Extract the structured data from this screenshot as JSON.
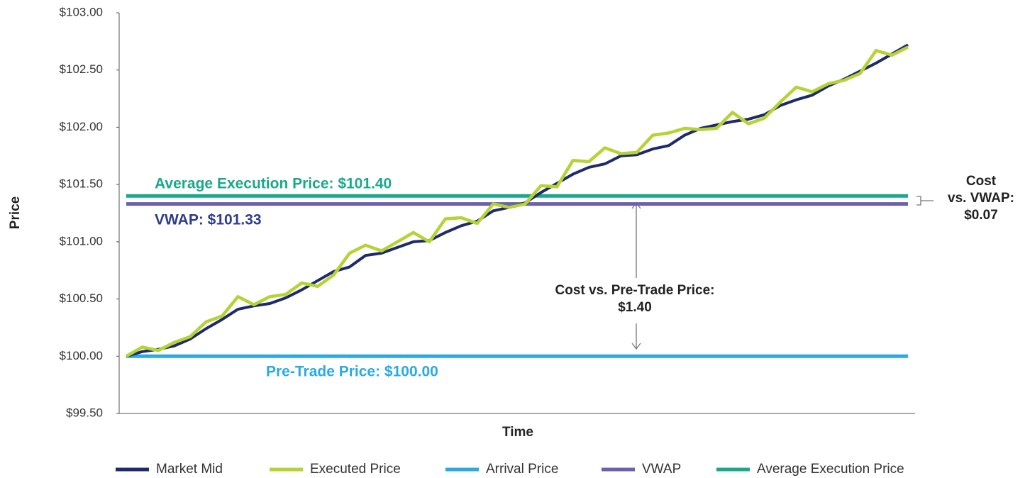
{
  "chart_data": {
    "type": "line",
    "xlabel": "Time",
    "ylabel": "Price",
    "categories": [
      null,
      null,
      null,
      null,
      null,
      null,
      null,
      null,
      null,
      null,
      null,
      null,
      null,
      null,
      null,
      null,
      null,
      null,
      null,
      null,
      null,
      null,
      null,
      null,
      null,
      null,
      null,
      null,
      null,
      null,
      null,
      null,
      null,
      null,
      null,
      null,
      null,
      null,
      null,
      null,
      null,
      null,
      null,
      null,
      null,
      null,
      null,
      null,
      null,
      null
    ],
    "ylim": [
      99.5,
      103.0
    ],
    "yticks": [
      {
        "value": 99.5,
        "label": "$99.50"
      },
      {
        "value": 100.0,
        "label": "$100.00"
      },
      {
        "value": 100.5,
        "label": "$100.50"
      },
      {
        "value": 101.0,
        "label": "$101.00"
      },
      {
        "value": 101.5,
        "label": "$101.50"
      },
      {
        "value": 102.0,
        "label": "$102.00"
      },
      {
        "value": 102.5,
        "label": "$102.50"
      },
      {
        "value": 103.0,
        "label": "$103.00"
      }
    ],
    "series": [
      {
        "name": "Market Mid",
        "color": "#1f2a6b",
        "values": [
          100.0,
          100.04,
          100.06,
          100.09,
          100.15,
          100.24,
          100.32,
          100.41,
          100.44,
          100.46,
          100.51,
          100.58,
          100.66,
          100.74,
          100.78,
          100.88,
          100.9,
          100.95,
          101.0,
          101.01,
          101.08,
          101.14,
          101.18,
          101.27,
          101.3,
          101.34,
          101.43,
          101.51,
          101.59,
          101.65,
          101.68,
          101.75,
          101.76,
          101.81,
          101.84,
          101.93,
          101.99,
          102.02,
          102.05,
          102.07,
          102.11,
          102.19,
          102.24,
          102.28,
          102.36,
          102.42,
          102.49,
          102.56,
          102.64,
          102.72
        ]
      },
      {
        "name": "Executed Price",
        "color": "#b5d334",
        "values": [
          100.0,
          100.08,
          100.05,
          100.12,
          100.17,
          100.3,
          100.35,
          100.52,
          100.45,
          100.52,
          100.54,
          100.64,
          100.61,
          100.71,
          100.9,
          100.97,
          100.92,
          101.0,
          101.08,
          101.0,
          101.2,
          101.21,
          101.16,
          101.33,
          101.3,
          101.33,
          101.49,
          101.48,
          101.71,
          101.7,
          101.82,
          101.77,
          101.78,
          101.93,
          101.95,
          101.99,
          101.98,
          101.99,
          102.13,
          102.03,
          102.08,
          102.22,
          102.35,
          102.31,
          102.38,
          102.41,
          102.47,
          102.67,
          102.63,
          102.7
        ]
      },
      {
        "name": "Arrival Price",
        "color": "#29abe2",
        "value": 100.0,
        "label": "Pre-Trade Price: $100.00"
      },
      {
        "name": "VWAP",
        "color": "#6a5fb0",
        "value": 101.33,
        "label": "VWAP: $101.33",
        "label_color": "#2e3c8a"
      },
      {
        "name": "Average Execution Price",
        "color": "#1aa88a",
        "value": 101.4,
        "label": "Average Execution Price: $101.40"
      }
    ],
    "annotations": [
      {
        "lines": [
          "Cost",
          "vs. VWAP:",
          "$0.07"
        ]
      },
      {
        "lines": [
          "Cost vs. Pre-Trade Price:",
          "$1.40"
        ]
      }
    ]
  }
}
